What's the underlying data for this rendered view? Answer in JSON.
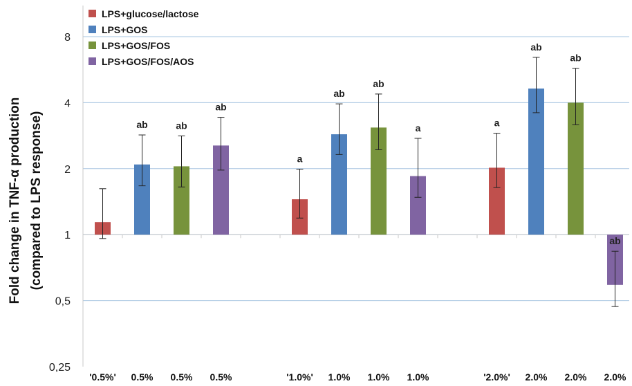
{
  "chart_data": {
    "type": "bar",
    "title": "",
    "ylabel_line1": "Fold change in TNF-α production",
    "ylabel_line2": "(compared to LPS response)",
    "y_scale": "log2",
    "ylim": [
      0.25,
      8
    ],
    "yticks": [
      {
        "value": 0.25,
        "label": "0,25"
      },
      {
        "value": 0.5,
        "label": "0,5"
      },
      {
        "value": 1,
        "label": "1"
      },
      {
        "value": 2,
        "label": "2"
      },
      {
        "value": 4,
        "label": "4"
      },
      {
        "value": 8,
        "label": "8"
      }
    ],
    "grid": true,
    "legend_position": "top-left",
    "series": [
      {
        "name": "LPS+glucose/lactose",
        "color": "#c0504d"
      },
      {
        "name": "LPS+GOS",
        "color": "#4f81bd"
      },
      {
        "name": "LPS+GOS/FOS",
        "color": "#77933c"
      },
      {
        "name": "LPS+GOS/FOS/AOS",
        "color": "#8064a2"
      }
    ],
    "groups": [
      {
        "bars": [
          {
            "series": 0,
            "category": "'0.5%'",
            "value": 1.14,
            "err_low": 0.96,
            "err_high": 1.62,
            "annotation": ""
          },
          {
            "series": 1,
            "category": "0.5%",
            "value": 2.09,
            "err_low": 1.67,
            "err_high": 2.85,
            "annotation": "ab"
          },
          {
            "series": 2,
            "category": "0.5%",
            "value": 2.05,
            "err_low": 1.65,
            "err_high": 2.82,
            "annotation": "ab"
          },
          {
            "series": 3,
            "category": "0.5%",
            "value": 2.55,
            "err_low": 1.97,
            "err_high": 3.43,
            "annotation": "ab"
          }
        ]
      },
      {
        "bars": [
          {
            "series": 0,
            "category": "'1.0%'",
            "value": 1.45,
            "err_low": 1.19,
            "err_high": 1.99,
            "annotation": "a"
          },
          {
            "series": 1,
            "category": "1.0%",
            "value": 2.87,
            "err_low": 2.32,
            "err_high": 3.95,
            "annotation": "ab"
          },
          {
            "series": 2,
            "category": "1.0%",
            "value": 3.08,
            "err_low": 2.44,
            "err_high": 4.38,
            "annotation": "ab"
          },
          {
            "series": 3,
            "category": "1.0%",
            "value": 1.85,
            "err_low": 1.48,
            "err_high": 2.75,
            "annotation": "a"
          }
        ]
      },
      {
        "bars": [
          {
            "series": 0,
            "category": "'2.0%'",
            "value": 2.02,
            "err_low": 1.64,
            "err_high": 2.9,
            "annotation": "a"
          },
          {
            "series": 1,
            "category": "2.0%",
            "value": 4.64,
            "err_low": 3.6,
            "err_high": 6.44,
            "annotation": "ab"
          },
          {
            "series": 2,
            "category": "2.0%",
            "value": 4.0,
            "err_low": 3.17,
            "err_high": 5.74,
            "annotation": "ab"
          },
          {
            "series": 3,
            "category": "2.0%",
            "value": 0.59,
            "err_low": 0.47,
            "err_high": 0.84,
            "annotation": "ab"
          }
        ]
      }
    ]
  }
}
